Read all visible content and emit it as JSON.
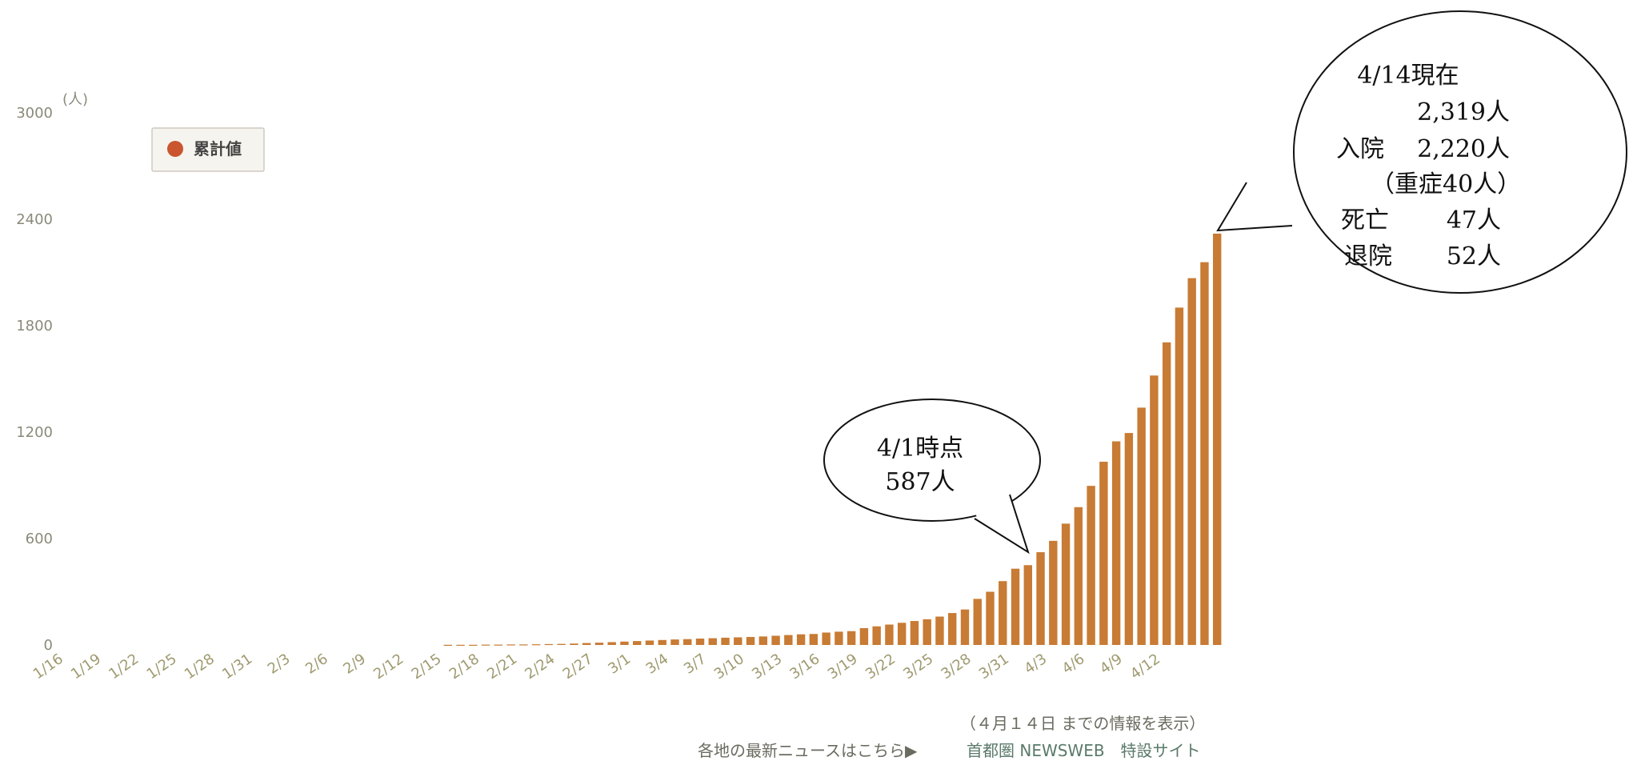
{
  "chart_data": {
    "type": "bar",
    "y_unit": "(人)",
    "yticks": [
      0,
      600,
      1200,
      1800,
      2400,
      3000
    ],
    "ylim": [
      0,
      3000
    ],
    "legend": [
      {
        "name": "累計値",
        "color": "#c9562f"
      }
    ],
    "bar_color": "#c87b34",
    "x_tick_labels": [
      "1/16",
      "1/19",
      "1/22",
      "1/25",
      "1/28",
      "1/31",
      "2/3",
      "2/6",
      "2/9",
      "2/12",
      "2/15",
      "2/18",
      "2/21",
      "2/24",
      "2/27",
      "3/1",
      "3/4",
      "3/7",
      "3/10",
      "3/13",
      "3/16",
      "3/19",
      "3/22",
      "3/25",
      "3/28",
      "3/31",
      "4/3",
      "4/6",
      "4/9",
      "4/12"
    ],
    "first_date": "1/16",
    "last_date": "4/14",
    "values": [
      0,
      0,
      0,
      0,
      0,
      0,
      0,
      0,
      0,
      0,
      0,
      0,
      0,
      0,
      0,
      0,
      0,
      0,
      0,
      0,
      0,
      0,
      0,
      0,
      0,
      0,
      0,
      0,
      0,
      0,
      0,
      1,
      1,
      1,
      2,
      2,
      3,
      3,
      4,
      5,
      6,
      8,
      11,
      13,
      16,
      19,
      22,
      25,
      28,
      31,
      33,
      36,
      38,
      41,
      43,
      45,
      48,
      52,
      56,
      60,
      62,
      70,
      75,
      78,
      95,
      105,
      115,
      125,
      135,
      145,
      160,
      180,
      200,
      260,
      300,
      360,
      430,
      450,
      523,
      587,
      684,
      777,
      897,
      1033,
      1148,
      1195,
      1338,
      1519,
      1706,
      1902,
      2068,
      2158,
      2319
    ],
    "callout_4_1": {
      "line1": "4/1時点",
      "line2": "587人"
    },
    "callout_4_14": {
      "line1": "4/14現在",
      "line2": "2,319人",
      "hospital_label": "入院",
      "hospital_value": "2,220人",
      "severe": "（重症40人）",
      "death_label": "死亡",
      "death_value": "47人",
      "discharged_label": "退院",
      "discharged_value": "52人"
    }
  },
  "footer": {
    "note": "（４月１４日 までの情報を表示）",
    "link_prefix": "各地の最新ニュースはこちら▶",
    "link_text": "首都圏 NEWSWEB　特設サイト"
  }
}
